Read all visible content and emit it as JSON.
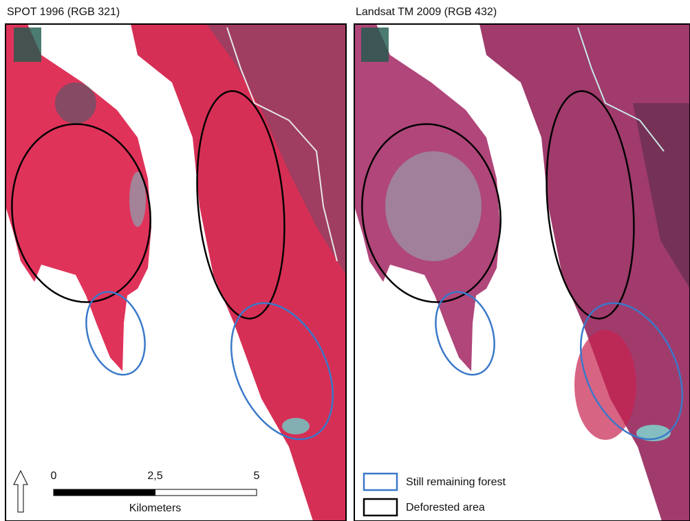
{
  "panels": [
    {
      "title": "SPOT 1996 (RGB 321)"
    },
    {
      "title": "Landsat TM 2009 (RGB 432)"
    }
  ],
  "scale_bar": {
    "ticks": [
      0,
      {
        "value": 2.5,
        "label": "2,5"
      },
      5
    ],
    "unit": "Kilometers"
  },
  "legend": [
    {
      "label": "Still remaining forest",
      "color": "#3a78c9"
    },
    {
      "label": "Deforested area",
      "color": "#000000"
    }
  ]
}
